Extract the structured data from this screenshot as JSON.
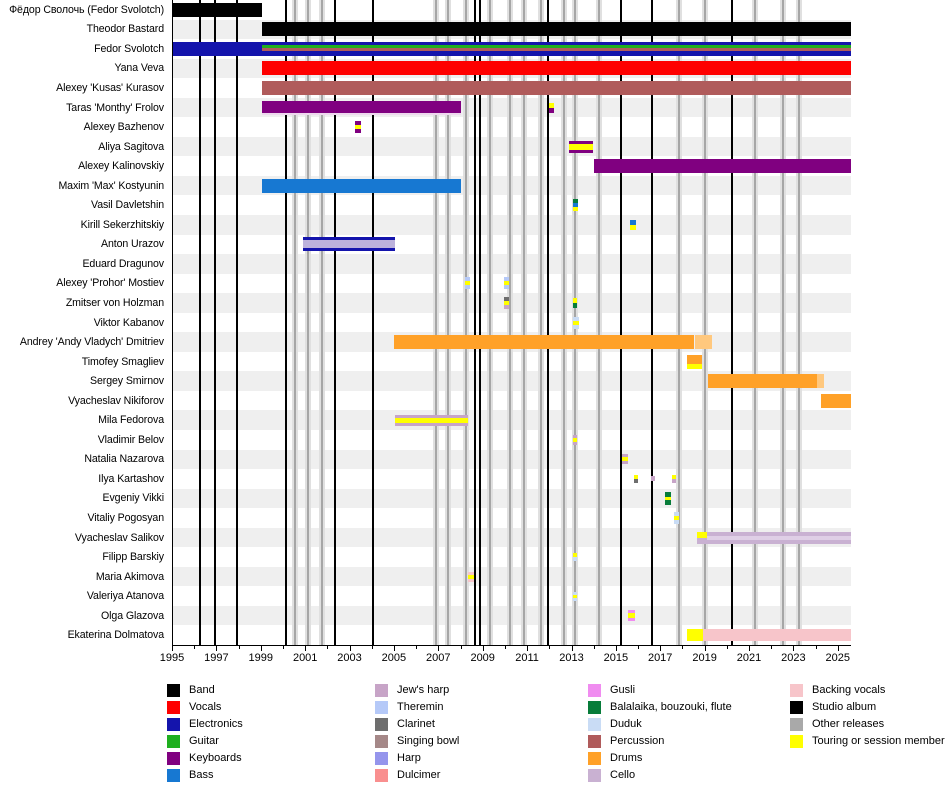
{
  "chart_data": {
    "type": "timeline",
    "x_axis": {
      "min": 1995,
      "max": 2025.55,
      "tick_labels": [
        "1995",
        "1997",
        "1999",
        "2001",
        "2003",
        "2005",
        "2007",
        "2009",
        "2011",
        "2013",
        "2015",
        "2017",
        "2019",
        "2021",
        "2023",
        "2025"
      ],
      "minor_tick_interval": 1
    },
    "colors": {
      "band": "#000000",
      "vocals": "#fe0000",
      "electronics": "#1414ac",
      "guitar": "#1faf1f",
      "keyboards": "#800080",
      "bass": "#1778d2",
      "jews_harp": "#c7a4c7",
      "theremin": "#b5c9f8",
      "clarinet": "#6e6e6e",
      "singing_bowl": "#a58888",
      "harp": "#9595ec",
      "dulcimer": "#f98f8f",
      "gusli": "#f08cf0",
      "balalaika": "#077c3a",
      "duduk": "#c9dcf5",
      "percussion": "#b05b5b",
      "drums": "#ffa128",
      "cello": "#c9b1d2",
      "backing_vocals": "#f7c5ca",
      "studio_album": "#000000",
      "other_releases": "#a9a9a9",
      "touring": "#ffff00"
    },
    "releases": {
      "studio_albums": [
        1996.2,
        1996.9,
        1997.9,
        2000.1,
        2002.3,
        2004.0,
        2008.6,
        2008.85,
        2011.9,
        2015.2,
        2016.6,
        2020.2
      ],
      "other_releases": [
        2000.5,
        2001.1,
        2001.7,
        2006.85,
        2007.4,
        2008.2,
        2009.3,
        2010.2,
        2010.8,
        2011.6,
        2012.6,
        2013.1,
        2014.2,
        2017.8,
        2018.95,
        2021.2,
        2022.5,
        2023.2
      ]
    },
    "members": [
      {
        "name": "Фёдор Сволочь (Fedor Svolotch)",
        "bars": [
          {
            "from": 1995.0,
            "to": 1999.0,
            "layers": [
              [
                "band",
                14
              ]
            ]
          }
        ]
      },
      {
        "name": "Theodor Bastard",
        "bars": [
          {
            "from": 1999.0,
            "to": 2025.55,
            "layers": [
              [
                "band",
                14
              ]
            ]
          }
        ]
      },
      {
        "name": "Fedor Svolotch",
        "bars": [
          {
            "from": 1995.0,
            "to": 1999.0,
            "layers": [
              [
                "electronics",
                14
              ]
            ]
          },
          {
            "from": 1999.0,
            "to": 2025.55,
            "layers": [
              [
                "electronics",
                3
              ],
              [
                "guitar",
                3
              ],
              [
                "percussion",
                3
              ],
              [
                "electronics",
                5
              ]
            ]
          }
        ]
      },
      {
        "name": "Yana Veva",
        "bars": [
          {
            "from": 1999.0,
            "to": 2025.55,
            "layers": [
              [
                "vocals",
                14
              ]
            ]
          }
        ]
      },
      {
        "name": "Alexey 'Kusas' Kurasov",
        "bars": [
          {
            "from": 1999.0,
            "to": 2025.55,
            "layers": [
              [
                "percussion",
                14
              ]
            ]
          }
        ]
      },
      {
        "name": "Taras 'Monthy' Frolov",
        "bars": [
          {
            "from": 1999.0,
            "to": 2008.0,
            "layers": [
              [
                "keyboards",
                12
              ],
              [
                "#eed8ee",
                2
              ]
            ]
          },
          {
            "from": 2011.95,
            "to": 2012.15,
            "layers": [
              [
                "touring",
                5
              ],
              [
                "keyboards",
                5
              ]
            ]
          }
        ]
      },
      {
        "name": "Alexey Bazhenov",
        "bars": [
          {
            "from": 2003.2,
            "to": 2003.45,
            "layers": [
              [
                "keyboards",
                4
              ],
              [
                "touring",
                4
              ],
              [
                "keyboards",
                4
              ]
            ]
          }
        ]
      },
      {
        "name": "Aliya Sagitova",
        "bars": [
          {
            "from": 2012.85,
            "to": 2013.95,
            "layers": [
              [
                "keyboards",
                3
              ],
              [
                "touring",
                6
              ],
              [
                "keyboards",
                3
              ]
            ]
          }
        ]
      },
      {
        "name": "Alexey Kalinovskiy",
        "bars": [
          {
            "from": 2013.95,
            "to": 2025.55,
            "layers": [
              [
                "keyboards",
                14
              ]
            ]
          }
        ]
      },
      {
        "name": "Maxim 'Max' Kostyunin",
        "bars": [
          {
            "from": 1999.0,
            "to": 2008.0,
            "layers": [
              [
                "bass",
                14
              ]
            ]
          }
        ]
      },
      {
        "name": "Vasil Davletshin",
        "bars": [
          {
            "from": 2013.0,
            "to": 2013.25,
            "layers": [
              [
                "balalaika",
                4
              ],
              [
                "bass",
                4
              ],
              [
                "touring",
                4
              ]
            ]
          }
        ]
      },
      {
        "name": "Kirill Sekerzhitskiy",
        "bars": [
          {
            "from": 2015.6,
            "to": 2015.85,
            "layers": [
              [
                "bass",
                5
              ],
              [
                "touring",
                5
              ]
            ]
          }
        ]
      },
      {
        "name": "Anton Urazov",
        "bars": [
          {
            "from": 2000.85,
            "to": 2005.0,
            "layers": [
              [
                "electronics",
                3
              ],
              [
                "#bcb2dc",
                8
              ],
              [
                "electronics",
                3
              ]
            ]
          }
        ]
      },
      {
        "name": "Eduard Dragunov",
        "bars": []
      },
      {
        "name": "Alexey 'Prohor' Mostiev",
        "bars": [
          {
            "from": 2008.15,
            "to": 2008.4,
            "layers": [
              [
                "theremin",
                4
              ],
              [
                "touring",
                4
              ],
              [
                "theremin",
                4
              ]
            ]
          },
          {
            "from": 2009.9,
            "to": 2010.15,
            "layers": [
              [
                "theremin",
                4
              ],
              [
                "touring",
                4
              ],
              [
                "theremin",
                4
              ]
            ]
          }
        ]
      },
      {
        "name": "Zmitser von Holzman",
        "bars": [
          {
            "from": 2009.9,
            "to": 2010.15,
            "layers": [
              [
                "clarinet",
                4
              ],
              [
                "touring",
                4
              ],
              [
                "jews_harp",
                4
              ]
            ]
          },
          {
            "from": 2013.0,
            "to": 2013.2,
            "layers": [
              [
                "touring",
                5
              ],
              [
                "balalaika",
                5
              ]
            ]
          }
        ]
      },
      {
        "name": "Viktor Kabanov",
        "bars": [
          {
            "from": 2013.0,
            "to": 2013.3,
            "layers": [
              [
                "duduk",
                4
              ],
              [
                "touring",
                4
              ],
              [
                "duduk",
                4
              ]
            ]
          }
        ]
      },
      {
        "name": "Andrey 'Andy Vladych' Dmitriev",
        "bars": [
          {
            "from": 2004.95,
            "to": 2018.5,
            "layers": [
              [
                "drums",
                14
              ]
            ]
          },
          {
            "from": 2018.5,
            "to": 2019.3,
            "layers": [
              [
                "#ffc87e",
                14
              ]
            ]
          }
        ]
      },
      {
        "name": "Timofey Smagliev",
        "bars": [
          {
            "from": 2018.15,
            "to": 2018.85,
            "layers": [
              [
                "drums",
                9
              ],
              [
                "touring",
                5
              ]
            ]
          }
        ]
      },
      {
        "name": "Sergey Smirnov",
        "bars": [
          {
            "from": 2019.1,
            "to": 2024.0,
            "layers": [
              [
                "drums",
                14
              ]
            ]
          },
          {
            "from": 2024.0,
            "to": 2024.35,
            "layers": [
              [
                "#ffc87e",
                14
              ]
            ]
          }
        ]
      },
      {
        "name": "Vyacheslav Nikiforov",
        "bars": [
          {
            "from": 2024.2,
            "to": 2025.55,
            "layers": [
              [
                "drums",
                14
              ]
            ]
          }
        ]
      },
      {
        "name": "Mila Fedorova",
        "bars": [
          {
            "from": 2005.0,
            "to": 2008.3,
            "layers": [
              [
                "jews_harp",
                3
              ],
              [
                "touring",
                5
              ],
              [
                "jews_harp",
                3
              ]
            ]
          }
        ]
      },
      {
        "name": "Vladimir Belov",
        "bars": [
          {
            "from": 2013.0,
            "to": 2013.2,
            "layers": [
              [
                "jews_harp",
                3
              ],
              [
                "touring",
                4
              ],
              [
                "jews_harp",
                3
              ]
            ]
          }
        ]
      },
      {
        "name": "Natalia Nazarova",
        "bars": [
          {
            "from": 2015.25,
            "to": 2015.5,
            "layers": [
              [
                "jews_harp",
                3
              ],
              [
                "touring",
                4
              ],
              [
                "jews_harp",
                3
              ]
            ]
          }
        ]
      },
      {
        "name": "Ilya Kartashov",
        "bars": [
          {
            "from": 2015.75,
            "to": 2015.95,
            "layers": [
              [
                "touring",
                4
              ],
              [
                "clarinet",
                4
              ]
            ]
          },
          {
            "from": 2016.55,
            "to": 2016.72,
            "layers": [
              [
                "jews_harp",
                5
              ]
            ]
          },
          {
            "from": 2017.5,
            "to": 2017.68,
            "layers": [
              [
                "touring",
                4
              ],
              [
                "jews_harp",
                4
              ]
            ]
          }
        ]
      },
      {
        "name": "Evgeniy Vikki",
        "bars": [
          {
            "from": 2017.15,
            "to": 2017.45,
            "layers": [
              [
                "balalaika",
                5
              ],
              [
                "touring",
                3
              ],
              [
                "balalaika",
                5
              ]
            ]
          }
        ]
      },
      {
        "name": "Vitaliy Pogosyan",
        "bars": [
          {
            "from": 2017.55,
            "to": 2017.78,
            "layers": [
              [
                "duduk",
                4
              ],
              [
                "touring",
                4
              ],
              [
                "duduk",
                4
              ]
            ]
          }
        ]
      },
      {
        "name": "Vyacheslav Salikov",
        "bars": [
          {
            "from": 2018.6,
            "to": 2019.05,
            "layers": [
              [
                "touring",
                6
              ],
              [
                "cello",
                6
              ]
            ]
          },
          {
            "from": 2019.05,
            "to": 2025.55,
            "layers": [
              [
                "cello",
                4
              ],
              [
                "#dfcfe6",
                4
              ],
              [
                "cello",
                4
              ]
            ]
          }
        ]
      },
      {
        "name": "Filipp Barskiy",
        "bars": [
          {
            "from": 2013.0,
            "to": 2013.2,
            "layers": [
              [
                "touring",
                4
              ],
              [
                "duduk",
                4
              ]
            ]
          }
        ]
      },
      {
        "name": "Maria Akimova",
        "bars": [
          {
            "from": 2008.3,
            "to": 2008.55,
            "layers": [
              [
                "backing_vocals",
                3
              ],
              [
                "touring",
                4
              ],
              [
                "backing_vocals",
                3
              ]
            ]
          }
        ]
      },
      {
        "name": "Valeriya Atanova",
        "bars": [
          {
            "from": 2013.0,
            "to": 2013.2,
            "layers": [
              [
                "duduk",
                3
              ],
              [
                "touring",
                3
              ],
              [
                "duduk",
                3
              ]
            ]
          }
        ]
      },
      {
        "name": "Olga Glazova",
        "bars": [
          {
            "from": 2015.5,
            "to": 2015.8,
            "layers": [
              [
                "gusli",
                3
              ],
              [
                "touring",
                5
              ],
              [
                "gusli",
                3
              ]
            ]
          }
        ]
      },
      {
        "name": "Ekaterina Dolmatova",
        "bars": [
          {
            "from": 2018.15,
            "to": 2018.9,
            "layers": [
              [
                "touring",
                12
              ]
            ]
          },
          {
            "from": 2018.9,
            "to": 2025.55,
            "layers": [
              [
                "backing_vocals",
                12
              ]
            ]
          }
        ]
      }
    ],
    "legend": {
      "columns": [
        {
          "items": [
            {
              "label": "Band",
              "color_key": "band"
            },
            {
              "label": "Vocals",
              "color_key": "vocals"
            },
            {
              "label": "Electronics",
              "color_key": "electronics"
            },
            {
              "label": "Guitar",
              "color_key": "guitar"
            },
            {
              "label": "Keyboards",
              "color_key": "keyboards"
            },
            {
              "label": "Bass",
              "color_key": "bass"
            }
          ]
        },
        {
          "items": [
            {
              "label": "Jew's harp",
              "color_key": "jews_harp"
            },
            {
              "label": "Theremin",
              "color_key": "theremin"
            },
            {
              "label": "Clarinet",
              "color_key": "clarinet"
            },
            {
              "label": "Singing bowl",
              "color_key": "singing_bowl"
            },
            {
              "label": "Harp",
              "color_key": "harp"
            },
            {
              "label": "Dulcimer",
              "color_key": "dulcimer"
            }
          ]
        },
        {
          "items": [
            {
              "label": "Gusli",
              "color_key": "gusli"
            },
            {
              "label": "Balalaika, bouzouki, flute",
              "color_key": "balalaika"
            },
            {
              "label": "Duduk",
              "color_key": "duduk"
            },
            {
              "label": "Percussion",
              "color_key": "percussion"
            },
            {
              "label": "Drums",
              "color_key": "drums"
            },
            {
              "label": "Cello",
              "color_key": "cello"
            }
          ]
        },
        {
          "items": [
            {
              "label": "Backing vocals",
              "color_key": "backing_vocals"
            },
            {
              "label": "Studio album",
              "color_key": "studio_album"
            },
            {
              "label": "Other releases",
              "color_key": "other_releases"
            },
            {
              "label": "Touring or session member",
              "color_key": "touring"
            }
          ]
        }
      ]
    }
  }
}
